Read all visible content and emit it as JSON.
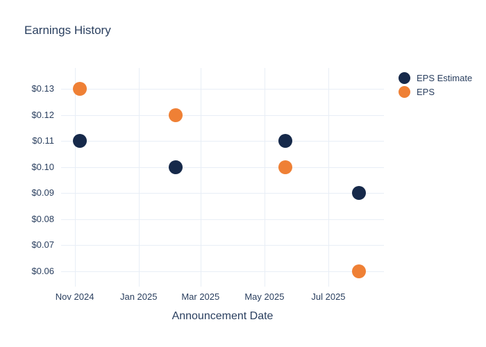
{
  "chart_data": {
    "type": "scatter",
    "title": "Earnings History",
    "xlabel": "Announcement Date",
    "ylabel": "",
    "x": [
      "2024-11-06",
      "2025-02-05",
      "2025-05-21",
      "2025-07-30"
    ],
    "series": [
      {
        "name": "EPS Estimate",
        "color": "#16294a",
        "values": [
          0.11,
          0.1,
          0.11,
          0.09
        ]
      },
      {
        "name": "EPS",
        "color": "#ef8035",
        "values": [
          0.13,
          0.12,
          0.1,
          0.06
        ]
      }
    ],
    "x_domain": [
      "2024-10-19",
      "2025-08-23"
    ],
    "ylim": [
      0.054,
      0.138
    ],
    "x_ticks": [
      {
        "date": "2024-11-01",
        "label": "Nov 2024"
      },
      {
        "date": "2025-01-01",
        "label": "Jan 2025"
      },
      {
        "date": "2025-03-01",
        "label": "Mar 2025"
      },
      {
        "date": "2025-05-01",
        "label": "May 2025"
      },
      {
        "date": "2025-07-01",
        "label": "Jul 2025"
      }
    ],
    "y_ticks": [
      {
        "value": 0.13,
        "label": "$0.13"
      },
      {
        "value": 0.12,
        "label": "$0.12"
      },
      {
        "value": 0.11,
        "label": "$0.11"
      },
      {
        "value": 0.1,
        "label": "$0.10"
      },
      {
        "value": 0.09,
        "label": "$0.09"
      },
      {
        "value": 0.08,
        "label": "$0.08"
      },
      {
        "value": 0.07,
        "label": "$0.07"
      },
      {
        "value": 0.06,
        "label": "$0.06"
      }
    ],
    "grid": true,
    "legend_position": "top-right",
    "marker_size_px": 20,
    "legend_marker_size_px": 17,
    "colors": {
      "text": "#2a3f5f",
      "grid": "#e8eef6",
      "background": "#ffffff"
    }
  }
}
